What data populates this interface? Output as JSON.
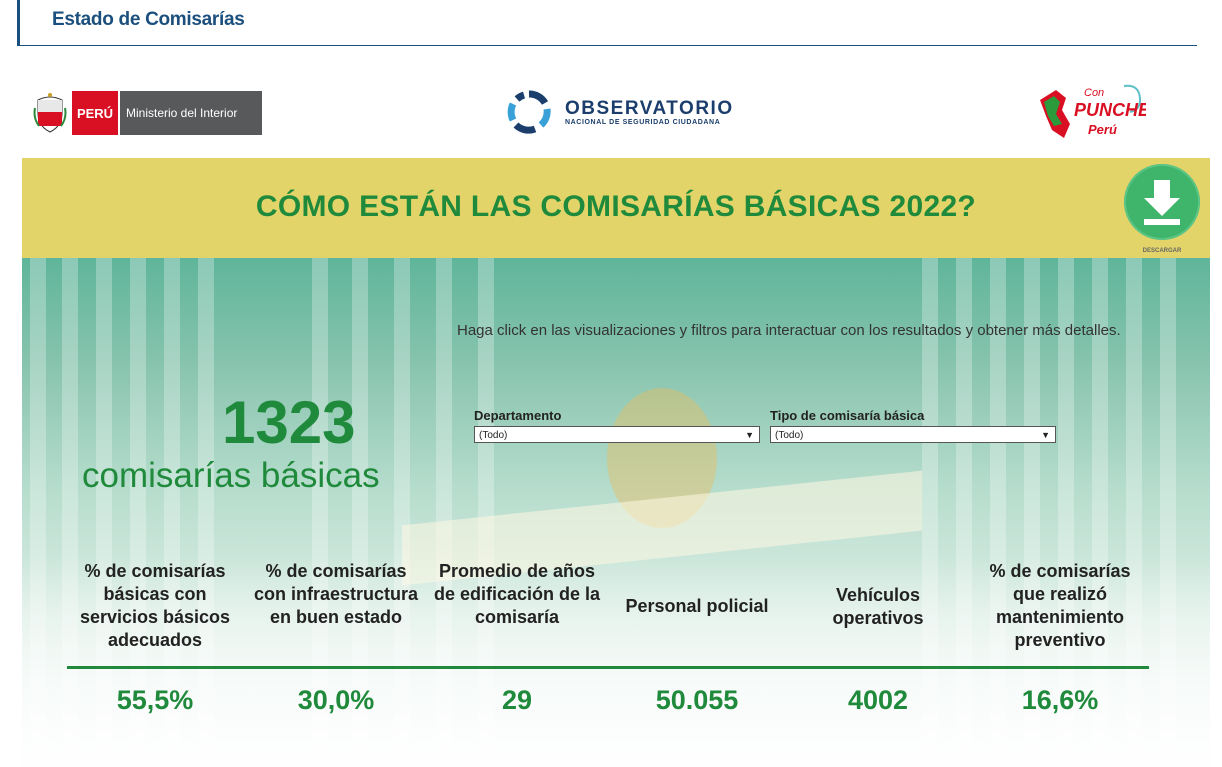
{
  "header": {
    "title": "Estado de Comisarías"
  },
  "logos": {
    "peru": "PERÚ",
    "ministry": "Ministerio del Interior",
    "observatorio_title": "OBSERVATORIO",
    "observatorio_sub": "NACIONAL DE SEGURIDAD CIUDADANA",
    "punche_con": "Con",
    "punche_main": "PUNCHE",
    "punche_peru": "Perú"
  },
  "banner": {
    "title": "CÓMO ESTÁN LAS COMISARÍAS BÁSICAS 2022?",
    "download_label": "DESCARGAR"
  },
  "instructions": "Haga click en las visualizaciones y filtros para interactuar con los resultados y obtener más detalles.",
  "summary": {
    "value": "1323",
    "label": "comisarías básicas"
  },
  "filters": [
    {
      "label": "Departamento",
      "value": "(Todo)"
    },
    {
      "label": "Tipo de comisaría básica",
      "value": "(Todo)"
    }
  ],
  "kpis": [
    {
      "label": "% de comisarías básicas con servicios básicos adecuados",
      "value": "55,5%"
    },
    {
      "label": "% de comisarías con infraestructura en buen estado",
      "value": "30,0%"
    },
    {
      "label": "Promedio de años de edificación de la comisaría",
      "value": "29"
    },
    {
      "label": "Personal policial",
      "value": "50.055"
    },
    {
      "label": "Vehículos operativos",
      "value": "4002"
    },
    {
      "label": "% de comisarías que realizó mantenimiento preventivo",
      "value": "16,6%"
    }
  ],
  "colors": {
    "accent_green": "#1f8a3b",
    "banner_yellow": "#e3d46a",
    "header_blue": "#1b4f7d",
    "peru_red": "#d91023"
  }
}
